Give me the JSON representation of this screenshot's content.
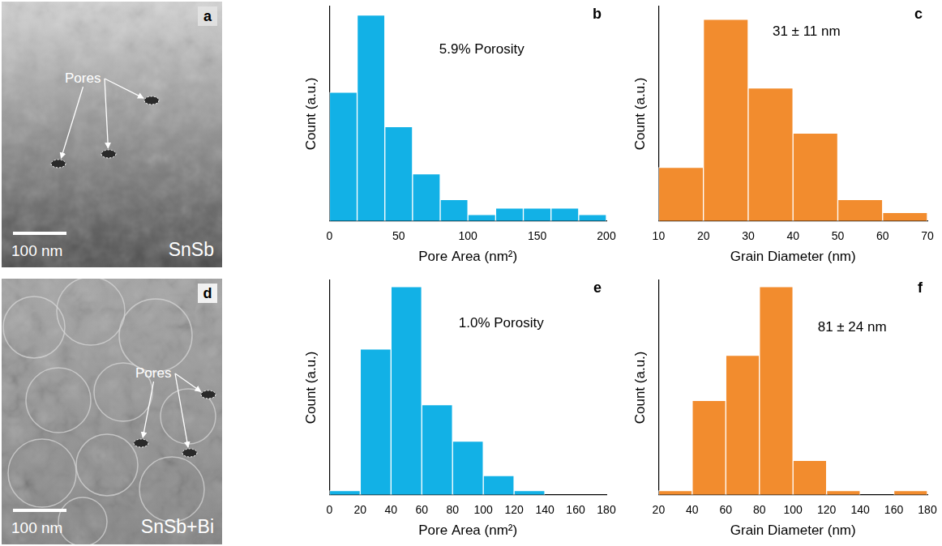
{
  "chart_data": [
    {
      "panel": "a",
      "type": "image",
      "title": "SnSb",
      "annotation": "Pores",
      "scale_bar": "100 nm"
    },
    {
      "panel": "b",
      "type": "histogram",
      "bins": [
        0,
        20,
        40,
        60,
        80,
        100,
        120,
        140,
        160,
        180,
        200
      ],
      "values": [
        60,
        96,
        44,
        22,
        10,
        3,
        6,
        6,
        6,
        3
      ],
      "color": "#12b1e6",
      "x_label": "Pore Area (nm²)",
      "y_label": "Count (a.u.)",
      "xlim": [
        0,
        200
      ],
      "xticks": [
        0,
        50,
        100,
        150,
        200
      ],
      "ylim": [
        0,
        100
      ],
      "tick_labels": "x",
      "grid": false,
      "annotations": [
        "5.9% Porosity"
      ]
    },
    {
      "panel": "c",
      "type": "histogram",
      "bins": [
        10,
        20,
        30,
        40,
        50,
        60,
        70
      ],
      "values": [
        25,
        94,
        62,
        41,
        10,
        4
      ],
      "color": "#f28c2e",
      "x_label": "Grain Diameter (nm)",
      "y_label": "Count (a.u.)",
      "xlim": [
        10,
        70
      ],
      "xticks": [
        10,
        20,
        30,
        40,
        50,
        60,
        70
      ],
      "ylim": [
        0,
        100
      ],
      "tick_labels": "x",
      "grid": false,
      "annotations": [
        "31 ± 11 nm"
      ]
    },
    {
      "panel": "d",
      "type": "image",
      "title": "SnSb+Bi",
      "annotation": "Pores",
      "scale_bar": "100 nm"
    },
    {
      "panel": "e",
      "type": "histogram",
      "bins": [
        0,
        20,
        40,
        60,
        80,
        100,
        120,
        140,
        160,
        180
      ],
      "values": [
        2,
        68,
        97,
        42,
        25,
        9,
        2,
        0,
        0
      ],
      "color": "#12b1e6",
      "x_label": "Pore Area (nm²)",
      "y_label": "Count (a.u.)",
      "xlim": [
        0,
        180
      ],
      "xticks": [
        0,
        20,
        40,
        60,
        80,
        100,
        120,
        140,
        160,
        180
      ],
      "ylim": [
        0,
        100
      ],
      "tick_labels": "x",
      "grid": false,
      "annotations": [
        "1.0% Porosity"
      ]
    },
    {
      "panel": "f",
      "type": "histogram",
      "bins": [
        20,
        40,
        60,
        80,
        100,
        120,
        140,
        160,
        180
      ],
      "values": [
        2,
        44,
        65,
        97,
        16,
        2,
        0,
        2
      ],
      "color": "#f28c2e",
      "x_label": "Grain Diameter (nm)",
      "y_label": "Count (a.u.)",
      "xlim": [
        20,
        180
      ],
      "xticks": [
        20,
        40,
        60,
        80,
        100,
        120,
        140,
        160,
        180
      ],
      "ylim": [
        0,
        100
      ],
      "tick_labels": "x",
      "grid": false,
      "annotations": [
        "81 ± 24 nm"
      ]
    }
  ]
}
